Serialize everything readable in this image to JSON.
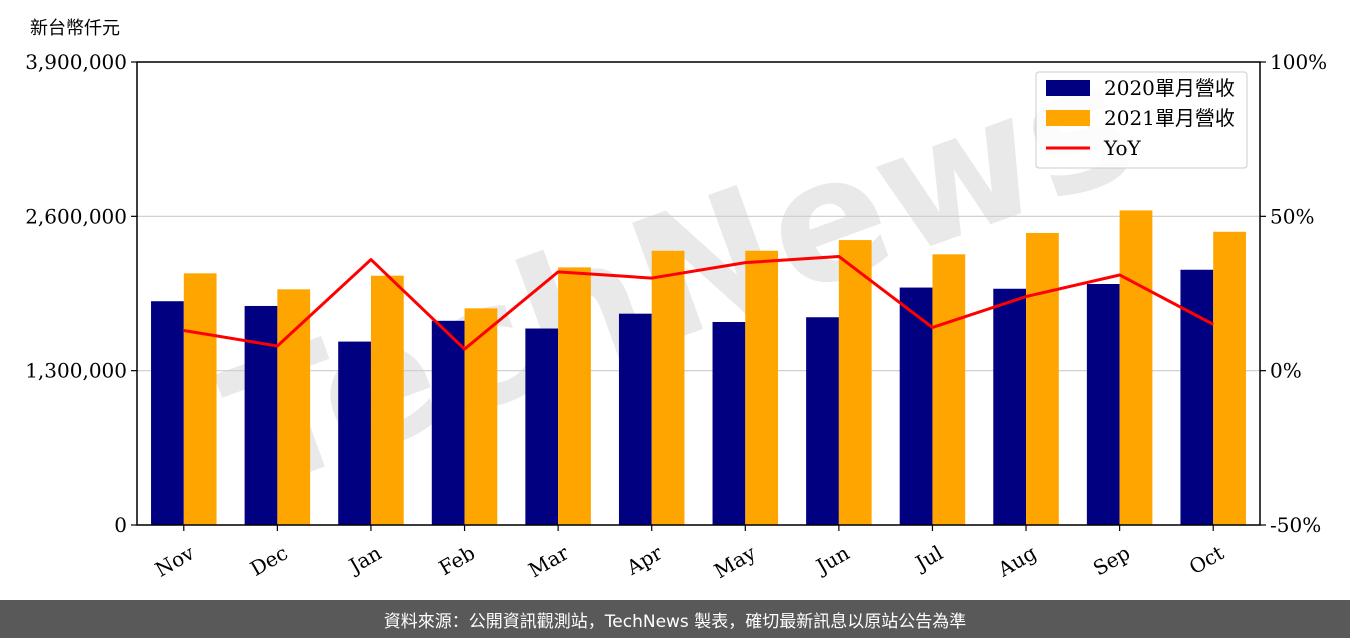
{
  "chart_data": {
    "type": "bar",
    "unit_label": "新台幣仟元",
    "categories": [
      "Nov",
      "Dec",
      "Jan",
      "Feb",
      "Mar",
      "Apr",
      "May",
      "Jun",
      "Jul",
      "Aug",
      "Sep",
      "Oct"
    ],
    "series": [
      {
        "name": "2020單月營收",
        "type": "bar",
        "axis": "left",
        "color": "#000080",
        "values": [
          1885000,
          1845000,
          1545000,
          1720000,
          1655000,
          1780000,
          1710000,
          1750000,
          2000000,
          1990000,
          2030000,
          2150000
        ]
      },
      {
        "name": "2021單月營收",
        "type": "bar",
        "axis": "left",
        "color": "#ffa500",
        "values": [
          2120000,
          1985000,
          2100000,
          1825000,
          2170000,
          2310000,
          2310000,
          2400000,
          2280000,
          2460000,
          2650000,
          2470000
        ]
      },
      {
        "name": "YoY",
        "type": "line",
        "axis": "right",
        "color": "#ff0000",
        "values": [
          13,
          8,
          36,
          7,
          32,
          30,
          35,
          37,
          14,
          24,
          31,
          15
        ]
      }
    ],
    "left_axis": {
      "ylim": [
        0,
        3900000
      ],
      "ticks": [
        0,
        1300000,
        2600000,
        3900000
      ],
      "tick_labels": [
        "0",
        "1,300,000",
        "2,600,000",
        "3,900,000"
      ]
    },
    "right_axis": {
      "ylim": [
        -50,
        100
      ],
      "ticks": [
        -50,
        0,
        50,
        100
      ],
      "tick_labels": [
        "-50%",
        "0%",
        "50%",
        "100%"
      ]
    },
    "grid": "horizontal",
    "legend_position": "top-right",
    "watermark": "TechNews"
  },
  "footer": {
    "text": "資料來源：公開資訊觀測站，TechNews 製表，確切最新訊息以原站公告為準"
  }
}
